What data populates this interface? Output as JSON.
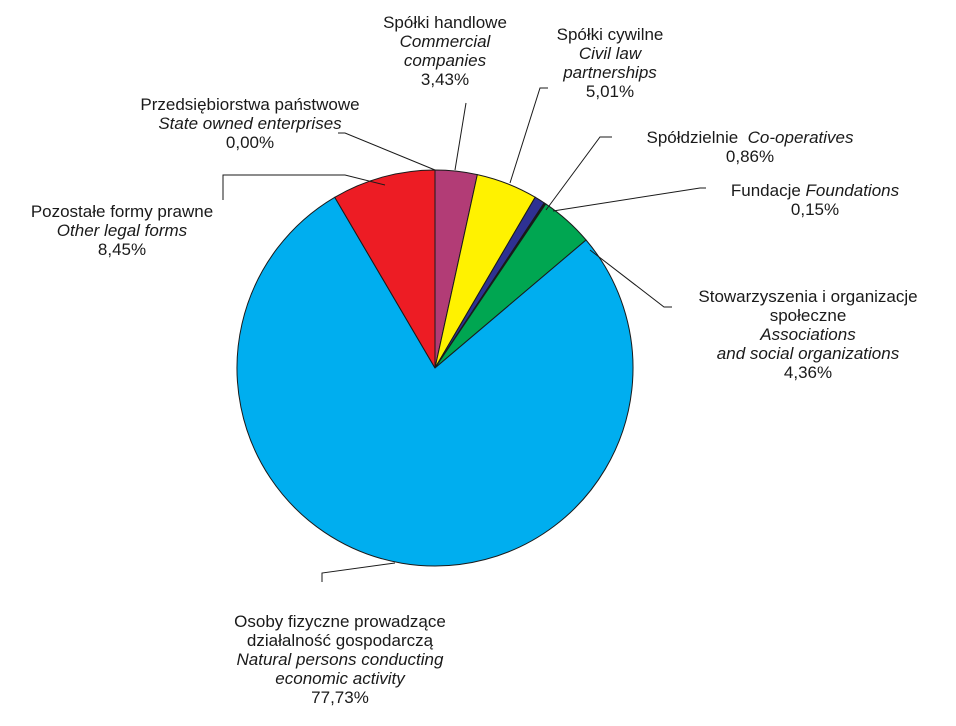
{
  "chart_data": {
    "type": "pie",
    "title": "",
    "start": "12 o'clock, clockwise",
    "slices": [
      {
        "pl": "Spółki handlowe",
        "en": "Commercial companies",
        "value": 3.43,
        "value_label": "3,43%",
        "color": "#b23c76"
      },
      {
        "pl": "Spółki cywilne",
        "en": "Civil law partnerships",
        "value": 5.01,
        "value_label": "5,01%",
        "color": "#fff200"
      },
      {
        "pl": "Spółdzielnie",
        "en": "Co-operatives",
        "value": 0.86,
        "value_label": "0,86%",
        "color": "#2e3192"
      },
      {
        "pl": "Fundacje",
        "en": "Foundations",
        "value": 0.15,
        "value_label": "0,15%",
        "color": "#1a1a1a"
      },
      {
        "pl": "Stowarzyszenia i organizacje społeczne",
        "en": "Associations and social organizations",
        "value": 4.36,
        "value_label": "4,36%",
        "color": "#00a651"
      },
      {
        "pl": "Osoby fizyczne prowadzące działalność gospodarczą",
        "en": "Natural persons conducting economic activity",
        "value": 77.73,
        "value_label": "77,73%",
        "color": "#00aeef"
      },
      {
        "pl": "Pozostałe formy prawne",
        "en": "Other legal forms",
        "value": 8.45,
        "value_label": "8,45%",
        "color": "#ed1c24"
      },
      {
        "pl": "Przedsiębiorstwa państwowe",
        "en": "State owned enterprises",
        "value": 0.0,
        "value_label": "0,00%",
        "color": "#7f7f7f"
      }
    ],
    "labels": {
      "commercial": {
        "l1": "Spółki handlowe",
        "l2": "Commercial",
        "l3": "companies",
        "l4": "3,43%"
      },
      "civil": {
        "l1": "Spółki cywilne",
        "l2": "Civil law",
        "l3": "partnerships",
        "l4": "5,01%"
      },
      "coop": {
        "pl": "Spółdzielnie",
        "en": "Co-operatives",
        "val": "0,86%"
      },
      "found": {
        "pl": "Fundacje",
        "en": "Foundations",
        "val": "0,15%"
      },
      "assoc": {
        "l1": "Stowarzyszenia i organizacje",
        "l2": "społeczne",
        "l3": "Associations",
        "l4": "and social organizations",
        "l5": "4,36%"
      },
      "natural": {
        "l1": "Osoby fizyczne prowadzące",
        "l2": "działalność gospodarczą",
        "l3": "Natural persons conducting",
        "l4": "economic activity",
        "l5": "77,73%"
      },
      "other": {
        "l1": "Pozostałe formy prawne",
        "l2": "Other legal forms",
        "l3": "8,45%"
      },
      "state": {
        "l1": "Przedsiębiorstwa państwowe",
        "l2": "State owned enterprises",
        "l3": "0,00%"
      }
    }
  }
}
